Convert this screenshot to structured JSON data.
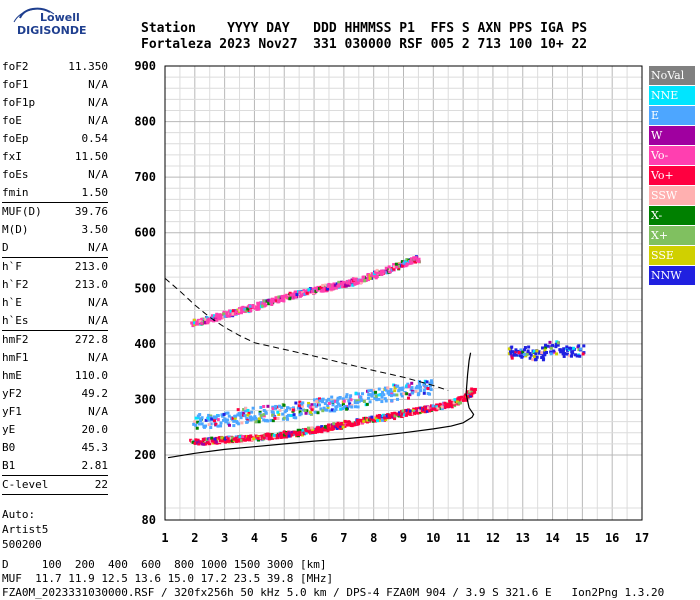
{
  "logo": {
    "line1": "Lowell",
    "line2": "DIGISONDE"
  },
  "header": {
    "line1": "Station    YYYY DAY   DDD HHMMSS P1  FFS S AXN PPS IGA PS",
    "line2": "Fortaleza 2023 Nov27  331 030000 RSF 005 2 713 100 10+ 22"
  },
  "params": [
    {
      "label": "foF2",
      "value": "11.350"
    },
    {
      "label": "foF1",
      "value": "N/A"
    },
    {
      "label": "foF1p",
      "value": "N/A"
    },
    {
      "label": "foE",
      "value": "N/A"
    },
    {
      "label": "foEp",
      "value": "0.54"
    },
    {
      "label": "fxI",
      "value": "11.50"
    },
    {
      "label": "foEs",
      "value": "N/A"
    },
    {
      "label": "fmin",
      "value": "1.50"
    },
    {
      "sep": true
    },
    {
      "label": "MUF(D)",
      "value": "39.76"
    },
    {
      "label": "M(D)",
      "value": "3.50"
    },
    {
      "label": "D",
      "value": "N/A"
    },
    {
      "sep": true
    },
    {
      "label": "h`F",
      "value": "213.0"
    },
    {
      "label": "h`F2",
      "value": "213.0"
    },
    {
      "label": "h`E",
      "value": "N/A"
    },
    {
      "label": "h`Es",
      "value": "N/A"
    },
    {
      "sep": true
    },
    {
      "label": "hmF2",
      "value": "272.8"
    },
    {
      "label": "hmF1",
      "value": "N/A"
    },
    {
      "label": "hmE",
      "value": "110.0"
    },
    {
      "label": "yF2",
      "value": "49.2"
    },
    {
      "label": "yF1",
      "value": "N/A"
    },
    {
      "label": "yE",
      "value": "20.0"
    },
    {
      "label": "B0",
      "value": "45.3"
    },
    {
      "label": "B1",
      "value": "2.81"
    },
    {
      "sep": true
    },
    {
      "label": "C-level",
      "value": "22"
    },
    {
      "sep": true
    }
  ],
  "auto": [
    "Auto:",
    "Artist5",
    "500200"
  ],
  "legend": [
    {
      "label": "NoVal",
      "color": "#808080"
    },
    {
      "label": "NNE",
      "color": "#00e5ff"
    },
    {
      "label": "E",
      "color": "#4da6ff"
    },
    {
      "label": "W",
      "color": "#a000a0"
    },
    {
      "label": "Vo-",
      "color": "#ff3fb0"
    },
    {
      "label": "Vo+",
      "color": "#ff0040"
    },
    {
      "label": "SSW",
      "color": "#ffb0b0"
    },
    {
      "label": "X-",
      "color": "#008000"
    },
    {
      "label": "X+",
      "color": "#80c060"
    },
    {
      "label": "SSE",
      "color": "#d0d000"
    },
    {
      "label": "NNW",
      "color": "#2020e0"
    }
  ],
  "footer": {
    "line1": "D     100  200  400  600  800 1000 1500 3000 [km]",
    "line2": "MUF  11.7 11.9 12.5 13.6 15.0 17.2 23.5 39.8 [MHz]",
    "line3": "FZA0M_2023331030000.RSF / 320fx256h 50 kHz 5.0 km / DPS-4 FZA0M 904 / 3.9 S 321.6 E   Ion2Png 1.3.20"
  },
  "chart_data": {
    "type": "scatter",
    "xlim": [
      1,
      17
    ],
    "ylim": [
      80,
      900
    ],
    "xticks": [
      1,
      2,
      3,
      4,
      5,
      6,
      7,
      8,
      9,
      10,
      11,
      12,
      13,
      14,
      15,
      16,
      17
    ],
    "yticks": [
      80,
      200,
      300,
      400,
      500,
      600,
      700,
      800,
      900
    ],
    "grid": true,
    "legend_position": "right",
    "traces": [
      {
        "name": "F2 O-trace",
        "color": "#ff0040",
        "points": [
          [
            1.9,
            225
          ],
          [
            2.5,
            228
          ],
          [
            3,
            230
          ],
          [
            3.5,
            232
          ],
          [
            4,
            234
          ],
          [
            4.5,
            236
          ],
          [
            5,
            240
          ],
          [
            5.5,
            243
          ],
          [
            6,
            248
          ],
          [
            6.5,
            252
          ],
          [
            7,
            258
          ],
          [
            7.5,
            262
          ],
          [
            8,
            268
          ],
          [
            8.5,
            272
          ],
          [
            9,
            278
          ],
          [
            9.5,
            283
          ],
          [
            10,
            288
          ],
          [
            10.5,
            294
          ],
          [
            11,
            305
          ],
          [
            11.35,
            320
          ]
        ]
      },
      {
        "name": "F2 second hop",
        "color": "#ff3fb0",
        "points": [
          [
            1.9,
            440
          ],
          [
            2.5,
            447
          ],
          [
            3,
            455
          ],
          [
            3.5,
            463
          ],
          [
            4,
            470
          ],
          [
            4.5,
            478
          ],
          [
            5,
            486
          ],
          [
            5.5,
            493
          ],
          [
            6,
            500
          ],
          [
            6.5,
            505
          ],
          [
            7,
            510
          ],
          [
            7.5,
            517
          ],
          [
            8,
            527
          ],
          [
            8.5,
            537
          ],
          [
            9,
            548
          ],
          [
            9.5,
            556
          ]
        ]
      },
      {
        "name": "spread F",
        "color": "#4da6ff",
        "points": [
          [
            2,
            262
          ],
          [
            3,
            268
          ],
          [
            4,
            275
          ],
          [
            5,
            280
          ],
          [
            6,
            290
          ],
          [
            7,
            298
          ],
          [
            8,
            308
          ],
          [
            9,
            318
          ],
          [
            10,
            328
          ]
        ]
      },
      {
        "name": "high echoes",
        "color": "#2020e0",
        "points": [
          [
            12.5,
            385
          ],
          [
            13,
            390
          ],
          [
            13.5,
            382
          ],
          [
            14,
            398
          ],
          [
            14.5,
            388
          ],
          [
            15,
            392
          ]
        ]
      }
    ],
    "profile": {
      "name": "electron density profile",
      "color": "#000000",
      "points": [
        [
          1.1,
          195
        ],
        [
          2,
          203
        ],
        [
          3,
          210
        ],
        [
          4,
          215
        ],
        [
          5,
          220
        ],
        [
          6,
          225
        ],
        [
          7,
          229
        ],
        [
          8,
          234
        ],
        [
          9,
          240
        ],
        [
          10,
          247
        ],
        [
          10.6,
          252
        ],
        [
          11,
          258
        ],
        [
          11.3,
          268
        ],
        [
          11.35,
          273
        ],
        [
          11.2,
          285
        ],
        [
          11.1,
          310
        ],
        [
          11.15,
          345
        ],
        [
          11.2,
          370
        ],
        [
          11.25,
          384
        ]
      ]
    },
    "dashed": {
      "name": "model trace",
      "color": "#000000",
      "points": [
        [
          1,
          518
        ],
        [
          1.5,
          495
        ],
        [
          2,
          470
        ],
        [
          2.5,
          448
        ],
        [
          3,
          430
        ],
        [
          3.5,
          415
        ],
        [
          4,
          402
        ],
        [
          5,
          390
        ],
        [
          6,
          378
        ],
        [
          7,
          365
        ],
        [
          8,
          352
        ],
        [
          9,
          340
        ],
        [
          10,
          325
        ],
        [
          10.5,
          316
        ]
      ]
    }
  }
}
